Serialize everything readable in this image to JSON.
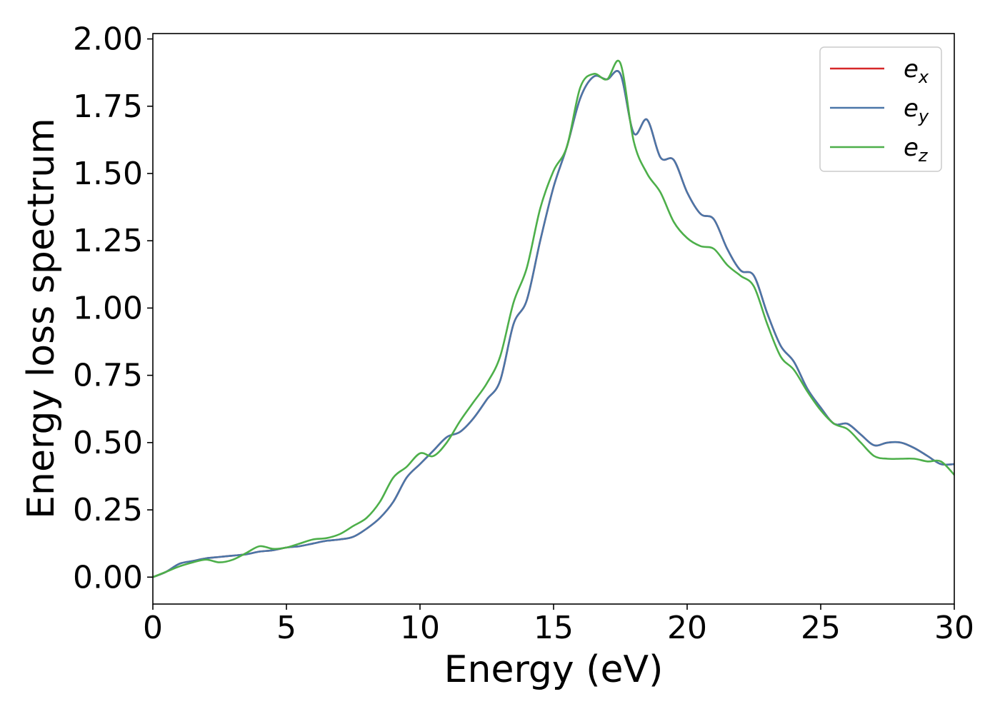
{
  "chart_data": {
    "type": "line",
    "title": "",
    "xlabel": "Energy (eV)",
    "ylabel": "Energy loss spectrum",
    "xlim": [
      0,
      30
    ],
    "ylim": [
      -0.1,
      2.02
    ],
    "xticks": [
      0,
      5,
      10,
      15,
      20,
      25,
      30
    ],
    "xtick_labels": [
      "0",
      "5",
      "10",
      "15",
      "20",
      "25",
      "30"
    ],
    "yticks": [
      0.0,
      0.25,
      0.5,
      0.75,
      1.0,
      1.25,
      1.5,
      1.75,
      2.0
    ],
    "ytick_labels": [
      "0.00",
      "0.25",
      "0.50",
      "0.75",
      "1.00",
      "1.25",
      "1.50",
      "1.75",
      "2.00"
    ],
    "grid": false,
    "legend_position": "top-right",
    "series": [
      {
        "name": "e_x",
        "base": "e",
        "subscript": "x",
        "color": "#d62728",
        "x": [
          0,
          0.5,
          1,
          1.5,
          2,
          2.5,
          3,
          3.5,
          4,
          4.5,
          5,
          5.5,
          6,
          6.5,
          7,
          7.5,
          8,
          8.5,
          9,
          9.5,
          10,
          10.5,
          11,
          11.5,
          12,
          12.5,
          13,
          13.5,
          14,
          14.5,
          15,
          15.5,
          16,
          16.5,
          17,
          17.5,
          18,
          18.5,
          19,
          19.5,
          20,
          20.5,
          21,
          21.5,
          22,
          22.5,
          23,
          23.5,
          24,
          24.5,
          25,
          25.5,
          26,
          26.5,
          27,
          27.5,
          28,
          28.5,
          29,
          29.5,
          30
        ],
        "values": [
          0.0,
          0.02,
          0.05,
          0.06,
          0.07,
          0.075,
          0.08,
          0.085,
          0.095,
          0.1,
          0.11,
          0.115,
          0.125,
          0.135,
          0.14,
          0.15,
          0.18,
          0.22,
          0.28,
          0.37,
          0.42,
          0.47,
          0.52,
          0.54,
          0.59,
          0.66,
          0.73,
          0.94,
          1.03,
          1.25,
          1.45,
          1.6,
          1.78,
          1.86,
          1.85,
          1.87,
          1.65,
          1.7,
          1.56,
          1.55,
          1.43,
          1.35,
          1.33,
          1.22,
          1.14,
          1.12,
          0.98,
          0.86,
          0.8,
          0.7,
          0.63,
          0.57,
          0.57,
          0.53,
          0.49,
          0.5,
          0.5,
          0.48,
          0.45,
          0.42,
          0.42
        ]
      },
      {
        "name": "e_y",
        "base": "e",
        "subscript": "y",
        "color": "#4a76a8",
        "x": [
          0,
          0.5,
          1,
          1.5,
          2,
          2.5,
          3,
          3.5,
          4,
          4.5,
          5,
          5.5,
          6,
          6.5,
          7,
          7.5,
          8,
          8.5,
          9,
          9.5,
          10,
          10.5,
          11,
          11.5,
          12,
          12.5,
          13,
          13.5,
          14,
          14.5,
          15,
          15.5,
          16,
          16.5,
          17,
          17.5,
          18,
          18.5,
          19,
          19.5,
          20,
          20.5,
          21,
          21.5,
          22,
          22.5,
          23,
          23.5,
          24,
          24.5,
          25,
          25.5,
          26,
          26.5,
          27,
          27.5,
          28,
          28.5,
          29,
          29.5,
          30
        ],
        "values": [
          0.0,
          0.02,
          0.05,
          0.06,
          0.07,
          0.075,
          0.08,
          0.085,
          0.095,
          0.1,
          0.11,
          0.115,
          0.125,
          0.135,
          0.14,
          0.15,
          0.18,
          0.22,
          0.28,
          0.37,
          0.42,
          0.47,
          0.52,
          0.54,
          0.59,
          0.66,
          0.73,
          0.94,
          1.03,
          1.25,
          1.45,
          1.6,
          1.78,
          1.86,
          1.85,
          1.87,
          1.65,
          1.7,
          1.56,
          1.55,
          1.43,
          1.35,
          1.33,
          1.22,
          1.14,
          1.12,
          0.98,
          0.86,
          0.8,
          0.7,
          0.63,
          0.57,
          0.57,
          0.53,
          0.49,
          0.5,
          0.5,
          0.48,
          0.45,
          0.42,
          0.42
        ]
      },
      {
        "name": "e_z",
        "base": "e",
        "subscript": "z",
        "color": "#4daf4a",
        "x": [
          0,
          0.5,
          1,
          1.5,
          2,
          2.5,
          3,
          3.5,
          4,
          4.5,
          5,
          5.5,
          6,
          6.5,
          7,
          7.5,
          8,
          8.5,
          9,
          9.5,
          10,
          10.5,
          11,
          11.5,
          12,
          12.5,
          13,
          13.5,
          14,
          14.5,
          15,
          15.5,
          16,
          16.5,
          17,
          17.5,
          18,
          18.5,
          19,
          19.5,
          20,
          20.5,
          21,
          21.5,
          22,
          22.5,
          23,
          23.5,
          24,
          24.5,
          25,
          25.5,
          26,
          26.5,
          27,
          27.5,
          28,
          28.5,
          29,
          29.5,
          30
        ],
        "values": [
          0.0,
          0.02,
          0.04,
          0.055,
          0.065,
          0.055,
          0.065,
          0.09,
          0.115,
          0.105,
          0.11,
          0.125,
          0.14,
          0.145,
          0.16,
          0.19,
          0.22,
          0.28,
          0.37,
          0.41,
          0.46,
          0.45,
          0.5,
          0.58,
          0.65,
          0.72,
          0.82,
          1.02,
          1.15,
          1.37,
          1.51,
          1.6,
          1.82,
          1.87,
          1.85,
          1.91,
          1.62,
          1.5,
          1.43,
          1.32,
          1.26,
          1.23,
          1.22,
          1.16,
          1.12,
          1.08,
          0.94,
          0.82,
          0.77,
          0.69,
          0.62,
          0.57,
          0.55,
          0.5,
          0.45,
          0.44,
          0.44,
          0.44,
          0.43,
          0.43,
          0.38
        ]
      }
    ]
  }
}
